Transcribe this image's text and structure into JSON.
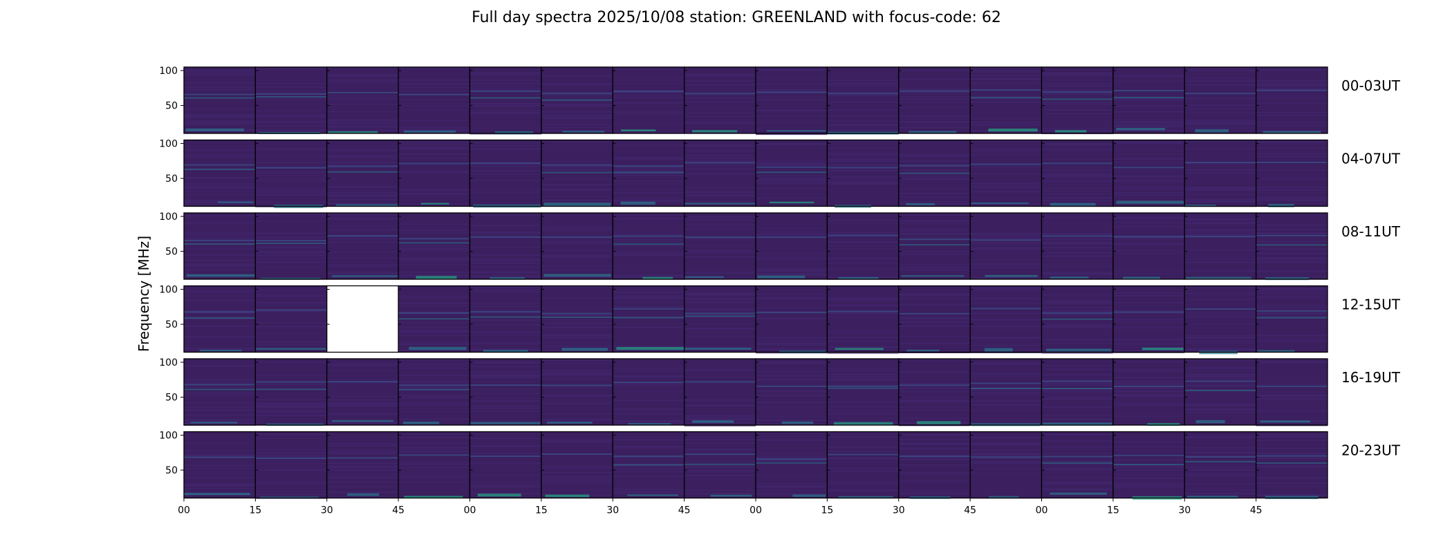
{
  "chart_data": {
    "type": "heatmap",
    "title": "Full day spectra 2025/10/08 station: GREENLAND with focus-code: 62",
    "ylabel": "Frequency [MHz]",
    "xlabel": "",
    "yticks": [
      50,
      100
    ],
    "ylim": [
      10,
      105
    ],
    "xticks": [
      "00",
      "15",
      "30",
      "45",
      "00",
      "15",
      "30",
      "45",
      "00",
      "15",
      "30",
      "45",
      "00",
      "15",
      "30",
      "45"
    ],
    "panels_per_row": 16,
    "rows": [
      {
        "label": "00-03UT",
        "missing": []
      },
      {
        "label": "04-07UT",
        "missing": []
      },
      {
        "label": "08-11UT",
        "missing": []
      },
      {
        "label": "12-15UT",
        "missing": [
          2
        ]
      },
      {
        "label": "16-19UT",
        "missing": []
      },
      {
        "label": "20-23UT",
        "missing": []
      }
    ],
    "colors": {
      "background_low": "#3b1f5e",
      "background_mid": "#41266b",
      "line_mid": "#3b528b",
      "line_high": "#2a788e",
      "line_peak": "#22a884",
      "frame": "#000000"
    }
  }
}
